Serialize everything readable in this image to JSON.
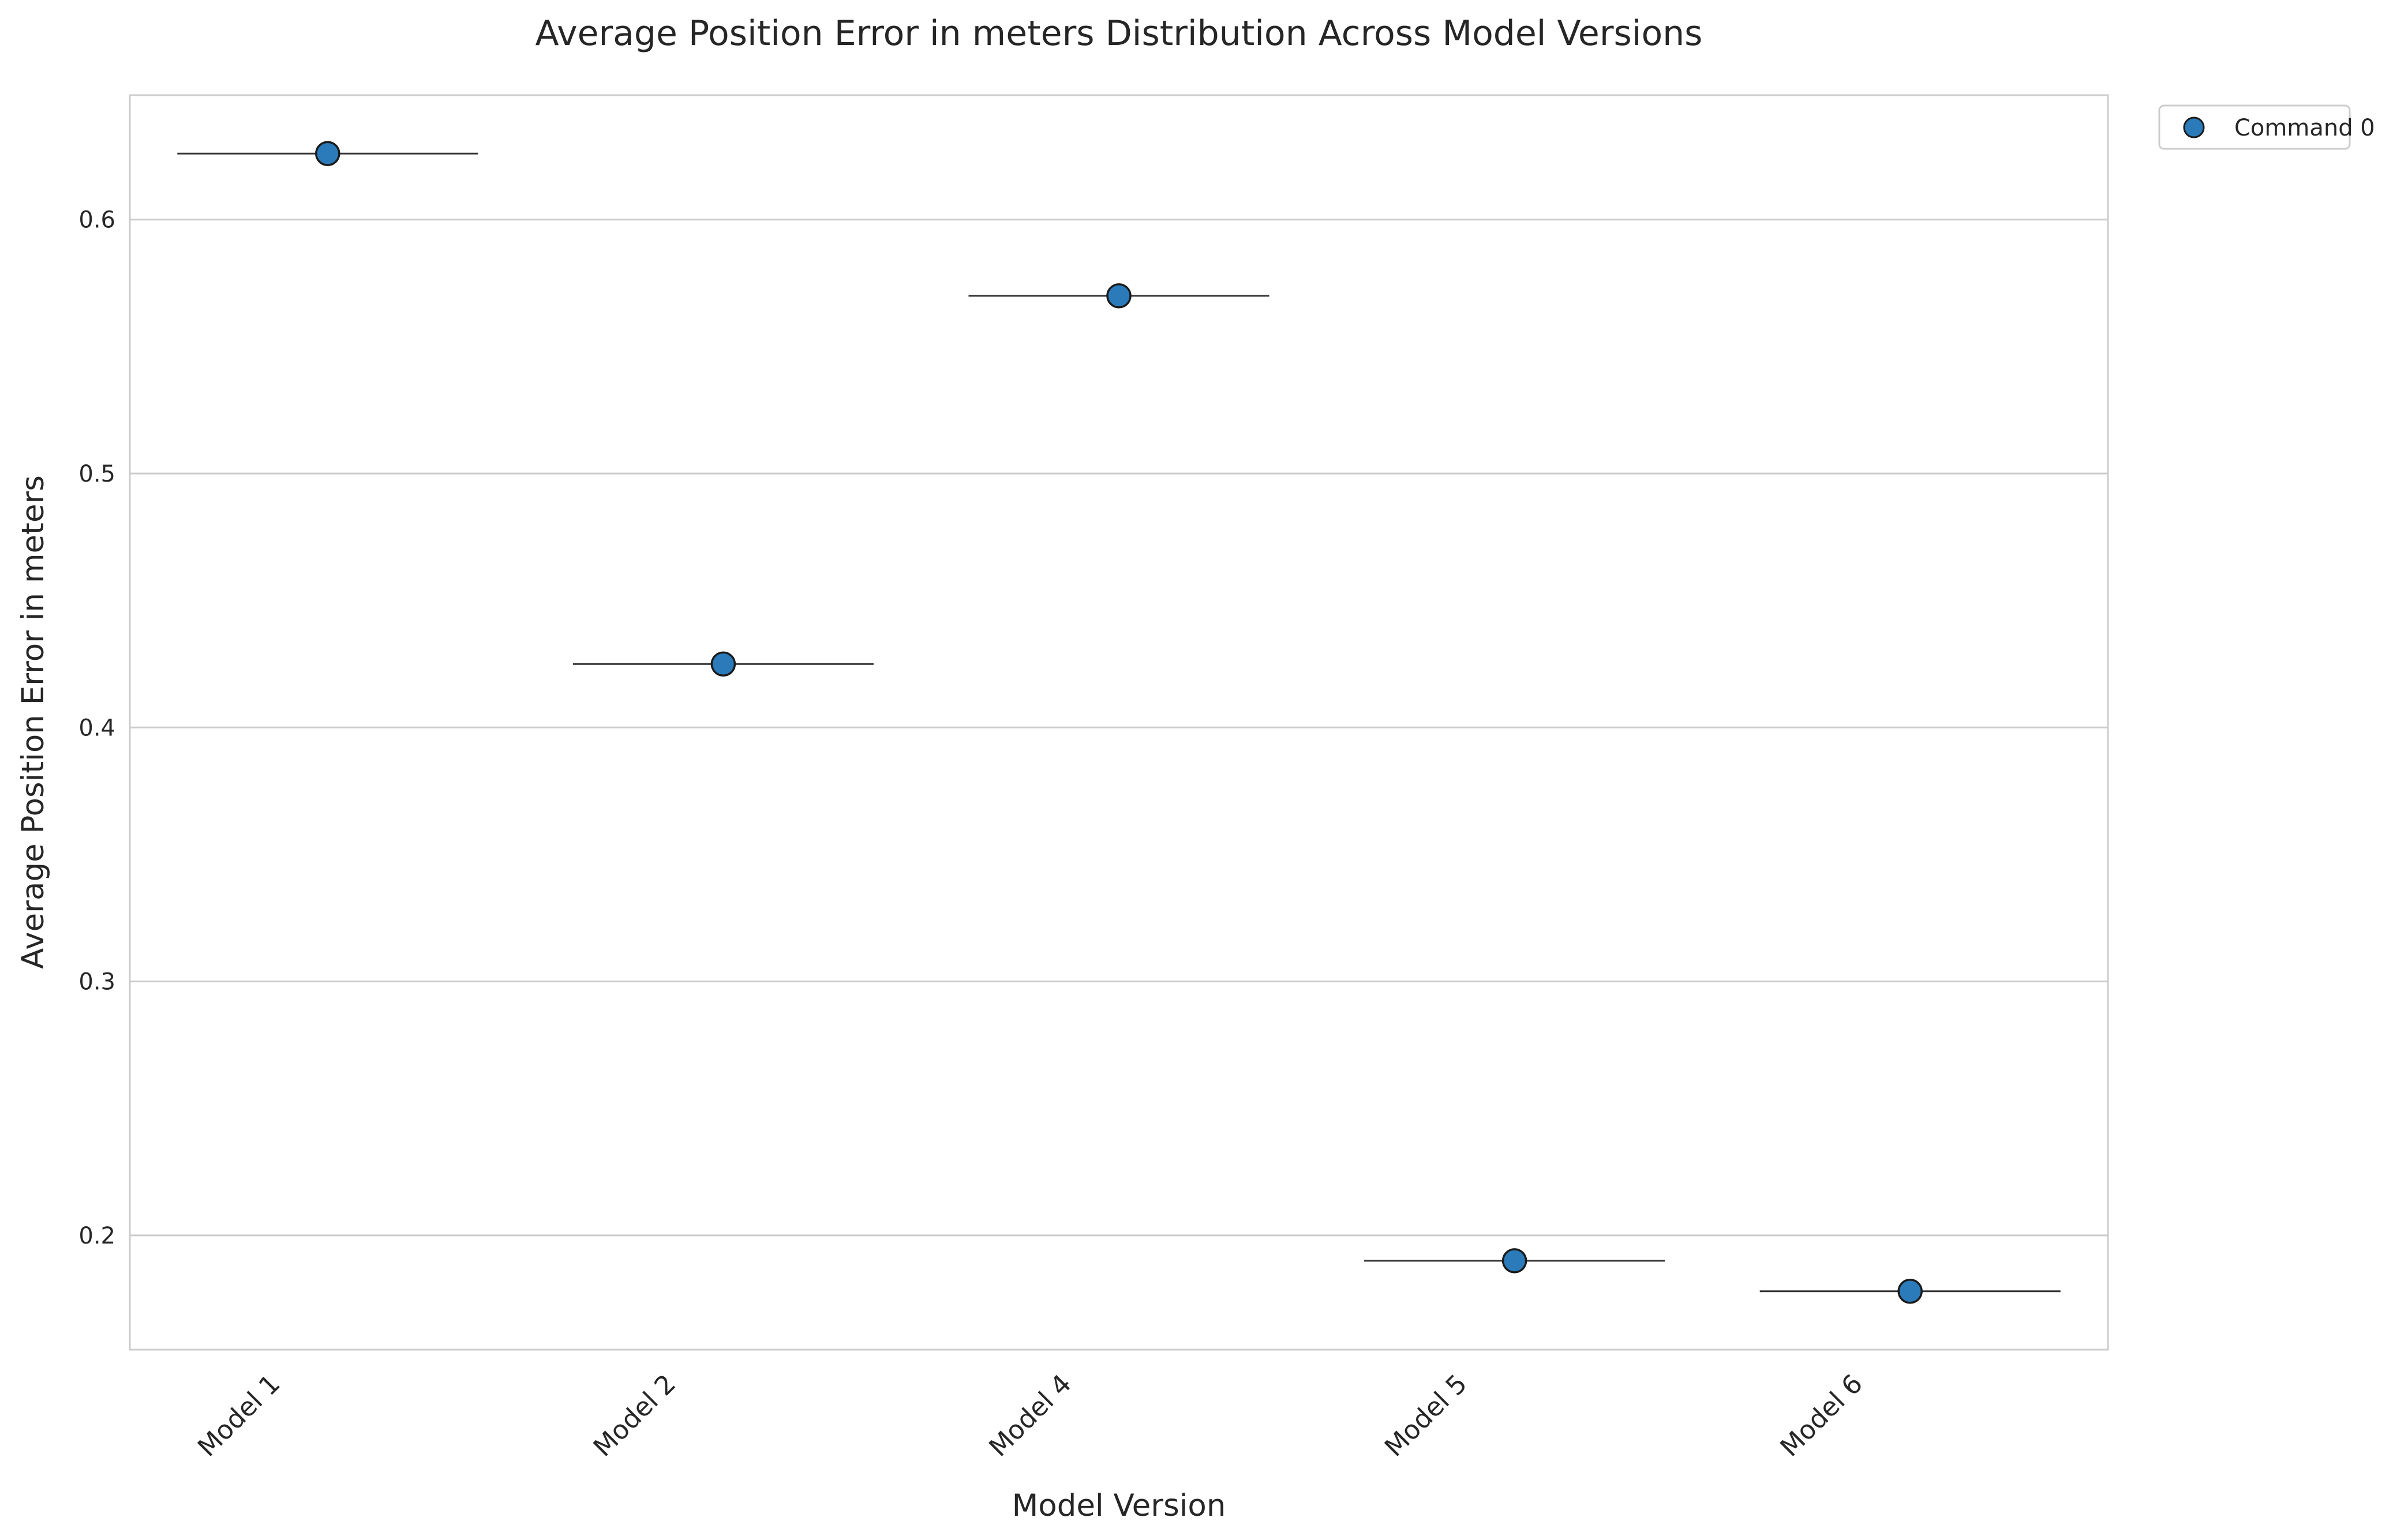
{
  "chart_data": {
    "type": "scatter",
    "title": "Average Position Error in meters Distribution Across Model Versions",
    "xlabel": "Model Version",
    "ylabel": "Average Position Error in meters",
    "categories": [
      "Model 1",
      "Model 2",
      "Model 4",
      "Model 5",
      "Model 6"
    ],
    "series": [
      {
        "name": "Command 0",
        "values": [
          0.626,
          0.425,
          0.57,
          0.19,
          0.178
        ]
      }
    ],
    "ylim": [
      0.155,
      0.649
    ],
    "yticks": [
      0.2,
      0.3,
      0.4,
      0.5,
      0.6
    ],
    "ytick_labels": [
      "0.2",
      "0.3",
      "0.4",
      "0.5",
      "0.6"
    ],
    "grid": "horizontal",
    "legend_position": "outside-top-right",
    "colors": {
      "marker": "#2b7bba",
      "marker_edge": "#1a1a1a",
      "median_line": "#333333",
      "grid": "#cccccc",
      "frame": "#cccccc",
      "text": "#262626"
    }
  }
}
